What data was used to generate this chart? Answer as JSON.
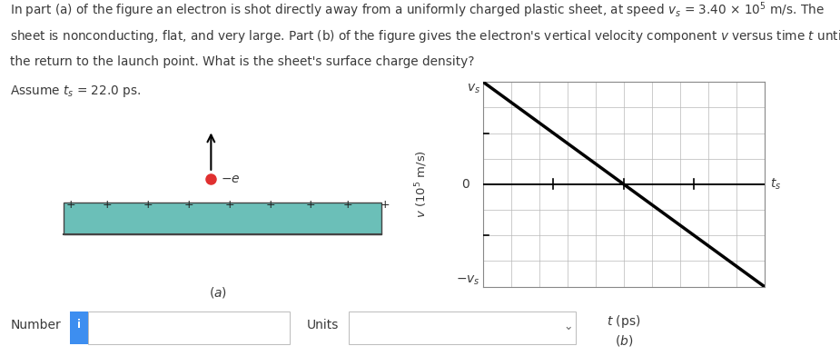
{
  "fig_width": 9.25,
  "fig_height": 3.92,
  "text_color": "#3a3a3a",
  "sheet_color": "#6bbfb8",
  "sheet_edge_color": "#444444",
  "electron_color": "#e03030",
  "grid_color": "#b8b8b8",
  "line_color": "#000000",
  "axis_color": "#000000",
  "number_box_color": "#3d8ef0",
  "text_lines": [
    "In part (a) of the figure an electron is shot directly away from a uniformly charged plastic sheet, at speed $v_s$ = 3.40 × 10$^5$ m/s. The",
    "sheet is nonconducting, flat, and very large. Part (b) of the figure gives the electron's vertical velocity component $v$ versus time $t$ until",
    "the return to the launch point. What is the sheet's surface charge density?",
    "Assume $t_s$ = 22.0 ps."
  ],
  "panel_a_label": "$(a)$",
  "panel_b_label": "$(b)$",
  "graph_ylabel": "$v$ (10$^5$ m/s)",
  "graph_xlabel": "$t$ (ps)",
  "graph_vs_label": "$v_s$",
  "graph_neg_vs_label": "$-v_s$",
  "graph_zero_label": "0",
  "graph_ts_label": "$t_s$",
  "number_label": "Number",
  "units_label": "Units",
  "plus_positions": [
    1.0,
    2.0,
    3.1,
    4.2,
    5.3,
    6.4,
    7.5,
    8.5,
    9.5
  ],
  "grid_nx": 11,
  "grid_ny": 9
}
